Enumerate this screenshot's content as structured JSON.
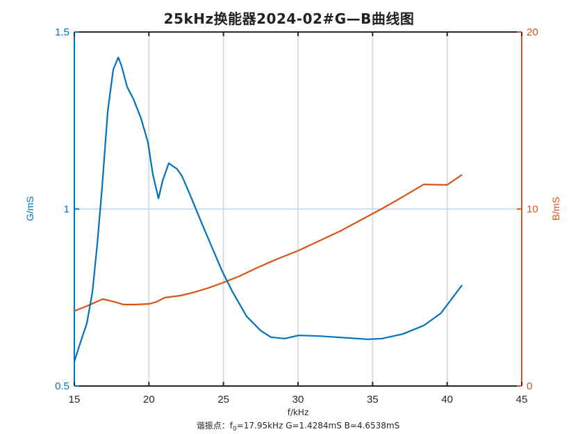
{
  "title": "25kHz换能器2024-02#G—B曲线图",
  "xlabel": "f/kHz",
  "ylabel_left": "G/mS",
  "ylabel_right": "B/mS",
  "annotation": {
    "prefix": "谐振点：f",
    "sub": "0",
    "rest": "=17.95kHz   G=1.4284mS   B=4.6538mS"
  },
  "colors": {
    "G": "#0072BD",
    "B": "#D95319",
    "grid": "#DCDCDC",
    "axis": "#262626",
    "refline": "#C8DCF0"
  },
  "chart_data": {
    "type": "line",
    "title": "25kHz换能器2024-02#G—B曲线图",
    "xlabel": "f/kHz",
    "ylabel": "G/mS",
    "ylabel_right": "B/mS",
    "xlim": [
      15,
      45
    ],
    "ylim": [
      0.5,
      1.5
    ],
    "ylim_right": [
      0,
      20
    ],
    "xticks": [
      15,
      20,
      25,
      30,
      35,
      40,
      45
    ],
    "yticks": [
      0.5,
      1,
      1.5
    ],
    "yticks_right": [
      0,
      10,
      20
    ],
    "grid": "vertical",
    "reference_line_y": 1,
    "series": [
      {
        "name": "G",
        "axis": "left",
        "color": "#0072BD",
        "x": [
          15.0,
          15.37,
          15.84,
          16.21,
          16.54,
          16.86,
          17.24,
          17.61,
          17.95,
          18.17,
          18.54,
          18.96,
          19.47,
          19.94,
          20.26,
          20.64,
          20.92,
          21.33,
          21.89,
          22.22,
          22.82,
          23.52,
          24.22,
          24.92,
          25.62,
          26.55,
          27.48,
          28.18,
          29.11,
          30.04,
          31.44,
          33.3,
          34.7,
          35.63,
          37.03,
          38.43,
          39.59,
          41.0
        ],
        "values": [
          0.569,
          0.618,
          0.677,
          0.765,
          0.903,
          1.06,
          1.276,
          1.394,
          1.428,
          1.404,
          1.345,
          1.311,
          1.256,
          1.188,
          1.099,
          1.03,
          1.08,
          1.129,
          1.113,
          1.093,
          1.034,
          0.962,
          0.893,
          0.824,
          0.765,
          0.697,
          0.657,
          0.638,
          0.634,
          0.643,
          0.641,
          0.636,
          0.632,
          0.634,
          0.647,
          0.671,
          0.706,
          0.785
        ]
      },
      {
        "name": "B",
        "axis": "right",
        "color": "#D95319",
        "x": [
          15.0,
          15.84,
          16.91,
          17.7,
          18.31,
          19.1,
          20.03,
          20.5,
          21.05,
          22.13,
          23.06,
          23.99,
          24.92,
          26.08,
          27.25,
          28.65,
          30.04,
          31.44,
          32.84,
          34.24,
          35.63,
          37.03,
          38.43,
          40.0,
          41.0
        ],
        "values": [
          4.24,
          4.52,
          4.91,
          4.75,
          4.6,
          4.6,
          4.64,
          4.75,
          4.99,
          5.11,
          5.3,
          5.54,
          5.82,
          6.21,
          6.68,
          7.19,
          7.66,
          8.21,
          8.76,
          9.39,
          10.02,
          10.69,
          11.39,
          11.36,
          11.94
        ]
      }
    ],
    "annotations": [
      "谐振点：f0=17.95kHz   G=1.4284mS   B=4.6538mS"
    ]
  }
}
